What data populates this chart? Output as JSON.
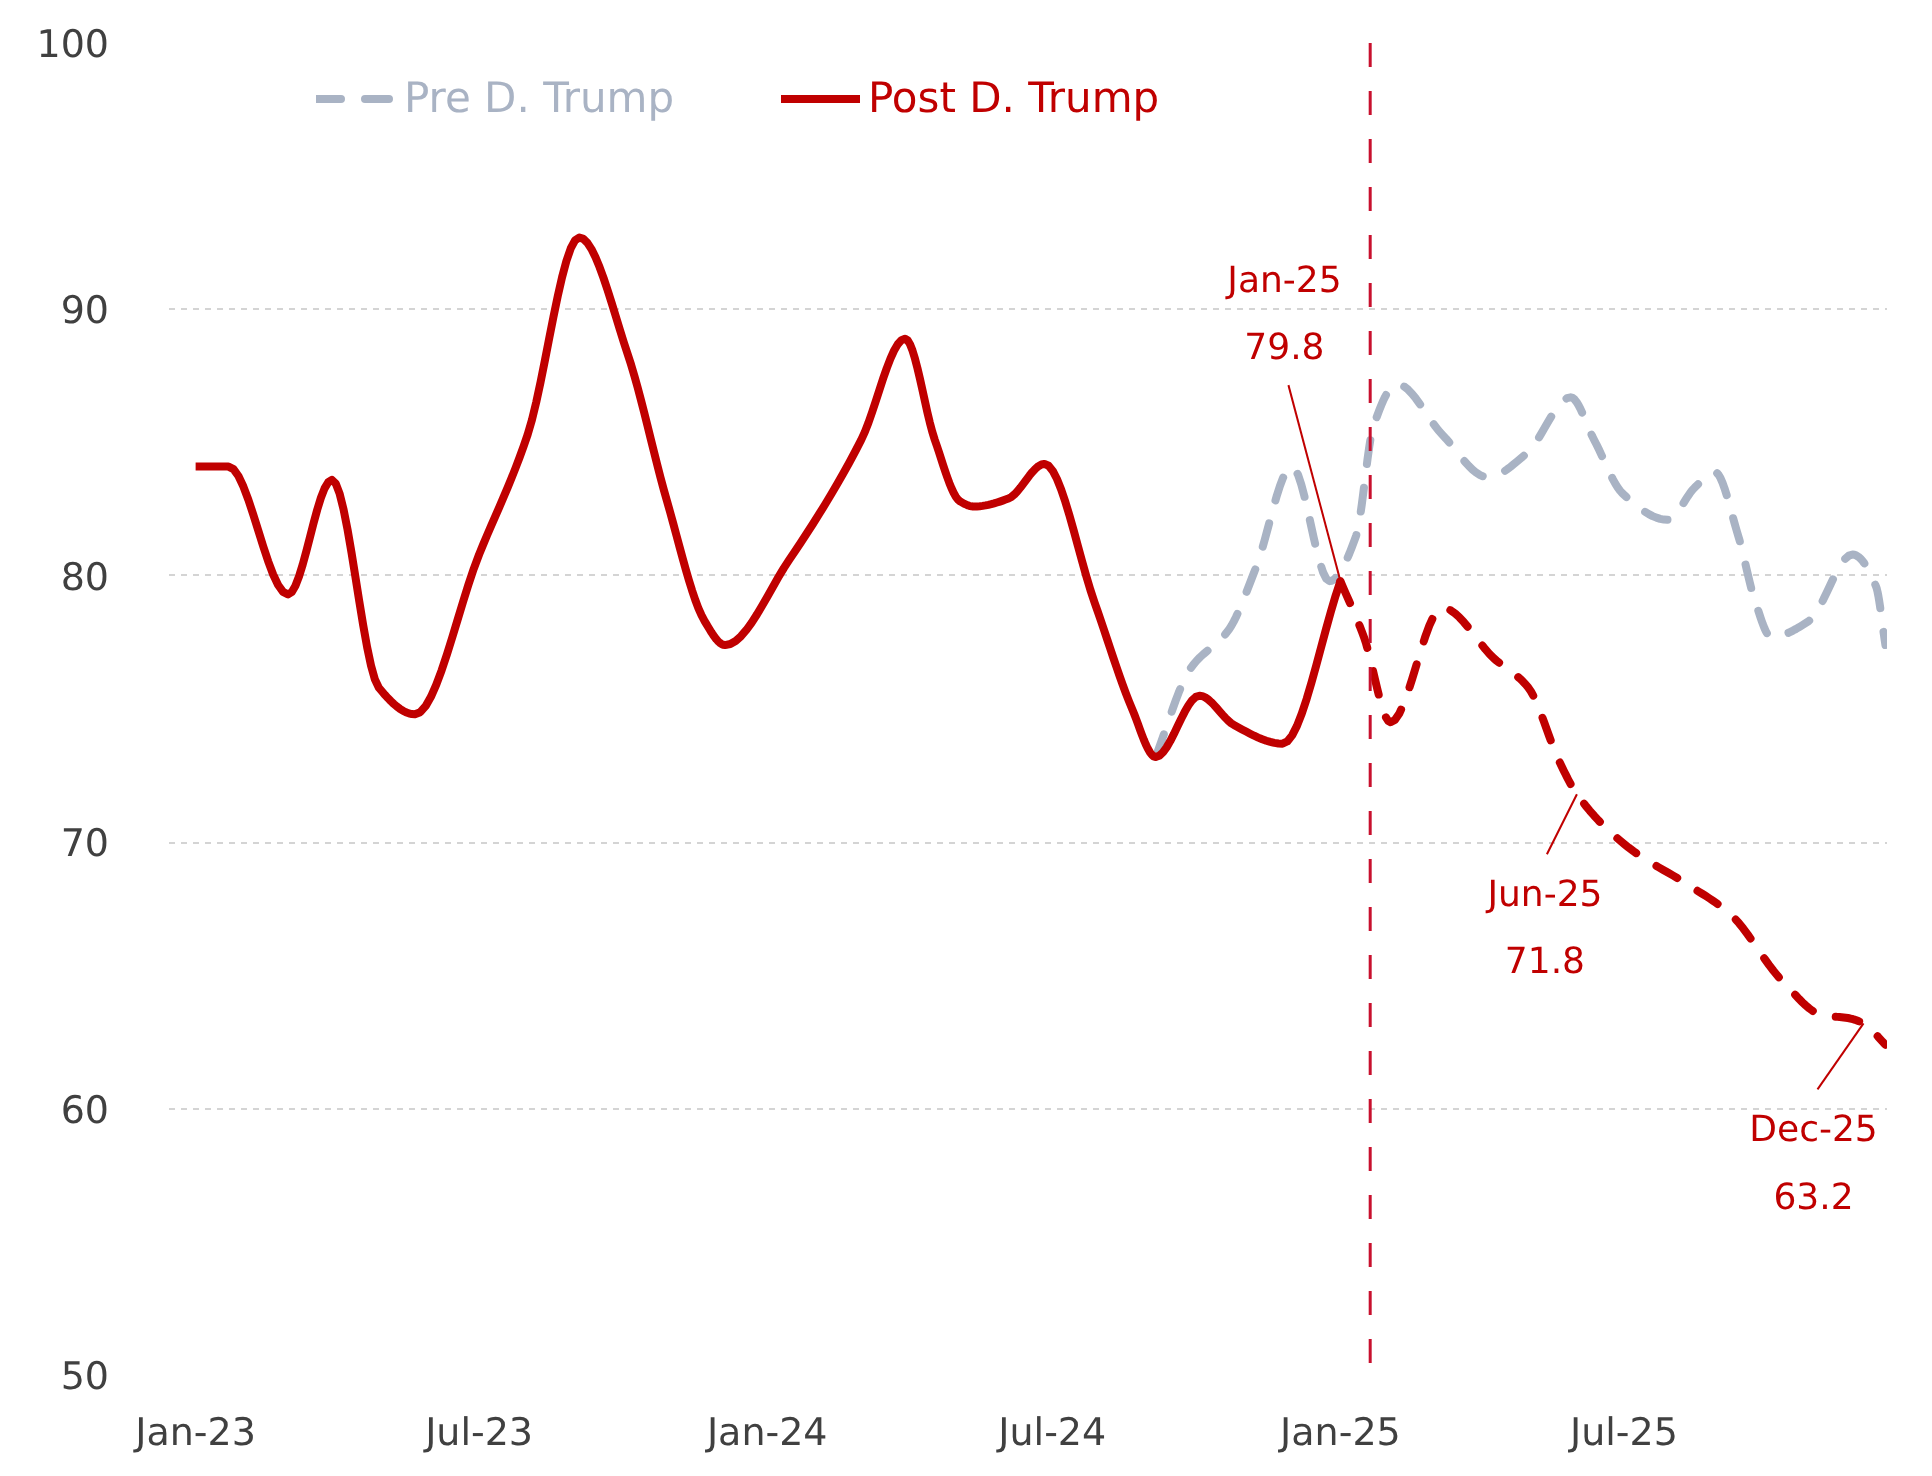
{
  "chart_data": {
    "type": "line",
    "xlim": [
      "2022-12-15",
      "2025-12-16"
    ],
    "xticks": [
      {
        "value": "2023-01",
        "label": "Jan-23"
      },
      {
        "value": "2023-07",
        "label": "Jul-23"
      },
      {
        "value": "2024-01",
        "label": "Jan-24"
      },
      {
        "value": "2024-07",
        "label": "Jul-24"
      },
      {
        "value": "2025-01",
        "label": "Jan-25"
      },
      {
        "value": "2025-07",
        "label": "Jul-25"
      }
    ],
    "ylim": [
      50,
      100
    ],
    "yticks": [
      50,
      60,
      70,
      80,
      90,
      100
    ],
    "grid": "y",
    "legend": "top left",
    "series": [
      {
        "name": "Pre D. Trump",
        "color": "#a9b3c4",
        "line_style": "dashed",
        "x": [
          "2024-09-05",
          "2024-09-27",
          "2024-10-22",
          "2024-11-08",
          "2024-12-01",
          "2024-12-25",
          "2025-01-11",
          "2025-01-22",
          "2025-02-06",
          "2025-03-07",
          "2025-04-05",
          "2025-04-30",
          "2025-05-28",
          "2025-06-12",
          "2025-06-30",
          "2025-07-29",
          "2025-08-15",
          "2025-08-28",
          "2025-09-12",
          "2025-09-23",
          "2025-10-03",
          "2025-10-27",
          "2025-11-24",
          "2025-12-09",
          "2025-12-15"
        ],
        "values": [
          73.2,
          76.5,
          78.0,
          80.3,
          84.1,
          79.8,
          81.5,
          85.6,
          87.2,
          85.3,
          83.7,
          84.6,
          86.7,
          85.1,
          83.1,
          82.1,
          83.3,
          83.9,
          81.5,
          79.0,
          77.7,
          78.3,
          80.8,
          79.6,
          77.4
        ]
      },
      {
        "name": "Post D. Trump",
        "color": "#c00000",
        "line_style": "solid",
        "x": [
          "2023-01-01",
          "2023-01-22",
          "2023-03-01",
          "2023-03-29",
          "2023-04-28",
          "2023-05-21",
          "2023-07-01",
          "2023-08-01",
          "2023-09-03",
          "2023-10-04",
          "2023-10-29",
          "2023-11-22",
          "2023-12-05",
          "2024-01-15",
          "2024-03-01",
          "2024-03-29",
          "2024-04-17",
          "2024-05-03",
          "2024-05-12",
          "2024-06-03",
          "2024-06-26",
          "2024-07-28",
          "2024-08-21",
          "2024-09-05",
          "2024-10-03",
          "2024-10-25",
          "2024-11-25",
          "2025-01-01"
        ],
        "values": [
          84.1,
          84.1,
          79.3,
          83.6,
          75.8,
          74.8,
          80.8,
          85.3,
          92.7,
          88.3,
          82.8,
          78.3,
          77.4,
          80.6,
          85.1,
          88.9,
          85.1,
          82.8,
          82.6,
          82.9,
          84.2,
          79.0,
          75.0,
          73.2,
          75.5,
          74.4,
          73.7,
          79.8
        ]
      },
      {
        "color": "#c00000",
        "line_style": "dashed",
        "x": [
          "2025-01-01",
          "2025-01-16",
          "2025-02-02",
          "2025-03-07",
          "2025-04-09",
          "2025-05-01",
          "2025-05-21",
          "2025-06-01",
          "2025-07-04",
          "2025-08-11",
          "2025-09-07",
          "2025-10-10",
          "2025-11-05",
          "2025-11-21",
          "2025-12-01",
          "2025-12-15"
        ],
        "values": [
          79.8,
          77.7,
          74.5,
          78.8,
          76.9,
          75.8,
          73.0,
          71.8,
          69.8,
          68.4,
          67.3,
          64.8,
          63.5,
          63.4,
          63.2,
          62.4
        ]
      }
    ],
    "ref_lines": [
      {
        "axis": "x",
        "value": "2025-01-20",
        "color": "#c8102e",
        "line_style": "dashed"
      }
    ],
    "annotations": [
      {
        "text": "Jan-25\n79.8",
        "x": "2025-01-01",
        "y": 79.8
      },
      {
        "text": "Jun-25\n71.8",
        "x": "2025-06-01",
        "y": 71.8
      },
      {
        "text": "Dec-25\n63.2",
        "x": "2025-12-01",
        "y": 63.2
      }
    ]
  }
}
